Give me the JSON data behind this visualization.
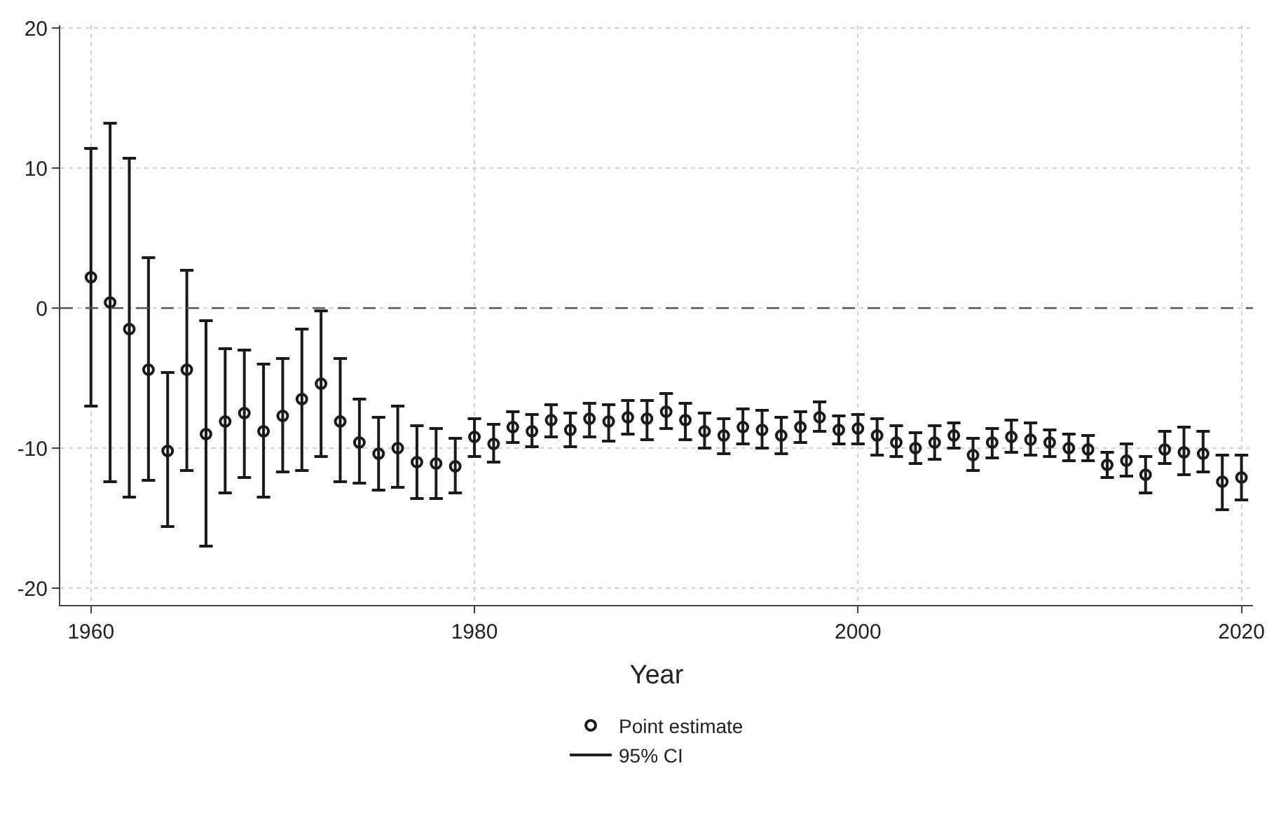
{
  "chart_data": {
    "type": "scatter",
    "xlabel": "Year",
    "x": [
      1960,
      1961,
      1962,
      1963,
      1964,
      1965,
      1966,
      1967,
      1968,
      1969,
      1970,
      1971,
      1972,
      1973,
      1974,
      1975,
      1976,
      1977,
      1978,
      1979,
      1980,
      1981,
      1982,
      1983,
      1984,
      1985,
      1986,
      1987,
      1988,
      1989,
      1990,
      1991,
      1992,
      1993,
      1994,
      1995,
      1996,
      1997,
      1998,
      1999,
      2000,
      2001,
      2002,
      2003,
      2004,
      2005,
      2006,
      2007,
      2008,
      2009,
      2010,
      2011,
      2012,
      2013,
      2014,
      2015,
      2016,
      2017,
      2018,
      2019,
      2020
    ],
    "series": [
      {
        "name": "Point estimate",
        "color": "#1a1a1a",
        "marker": "circle",
        "values": [
          2.2,
          0.4,
          -1.5,
          -4.4,
          -10.2,
          -4.4,
          -9.0,
          -8.1,
          -7.5,
          -8.8,
          -7.7,
          -6.5,
          -5.4,
          -8.1,
          -9.6,
          -10.4,
          -10.0,
          -11.0,
          -11.1,
          -11.3,
          -9.2,
          -9.7,
          -8.5,
          -8.8,
          -8.0,
          -8.7,
          -7.9,
          -8.1,
          -7.8,
          -7.9,
          -7.4,
          -8.0,
          -8.8,
          -9.1,
          -8.5,
          -8.7,
          -9.1,
          -8.5,
          -7.8,
          -8.7,
          -8.6,
          -9.1,
          -9.6,
          -10.0,
          -9.6,
          -9.1,
          -10.5,
          -9.6,
          -9.2,
          -9.4,
          -9.6,
          -10.0,
          -10.1,
          -11.2,
          -10.9,
          -11.9,
          -10.1,
          -10.3,
          -10.4,
          -12.4,
          -12.1
        ],
        "errors": [
          [
            -7.0,
            11.4
          ],
          [
            -12.4,
            13.2
          ],
          [
            -13.5,
            10.7
          ],
          [
            -12.3,
            3.6
          ],
          [
            -15.6,
            -4.6
          ],
          [
            -11.6,
            2.7
          ],
          [
            -17.0,
            -0.9
          ],
          [
            -13.2,
            -2.9
          ],
          [
            -12.1,
            -3.0
          ],
          [
            -13.5,
            -4.0
          ],
          [
            -11.7,
            -3.6
          ],
          [
            -11.6,
            -1.5
          ],
          [
            -10.6,
            -0.2
          ],
          [
            -12.4,
            -3.6
          ],
          [
            -12.5,
            -6.5
          ],
          [
            -13.0,
            -7.8
          ],
          [
            -12.8,
            -7.0
          ],
          [
            -13.6,
            -8.4
          ],
          [
            -13.6,
            -8.6
          ],
          [
            -13.2,
            -9.3
          ],
          [
            -10.6,
            -7.9
          ],
          [
            -11.0,
            -8.3
          ],
          [
            -9.6,
            -7.4
          ],
          [
            -9.9,
            -7.6
          ],
          [
            -9.2,
            -6.9
          ],
          [
            -9.9,
            -7.5
          ],
          [
            -9.2,
            -6.8
          ],
          [
            -9.5,
            -6.9
          ],
          [
            -9.0,
            -6.6
          ],
          [
            -9.4,
            -6.6
          ],
          [
            -8.6,
            -6.1
          ],
          [
            -9.4,
            -6.8
          ],
          [
            -10.0,
            -7.5
          ],
          [
            -10.4,
            -7.9
          ],
          [
            -9.7,
            -7.2
          ],
          [
            -10.0,
            -7.3
          ],
          [
            -10.4,
            -7.8
          ],
          [
            -9.6,
            -7.4
          ],
          [
            -8.8,
            -6.7
          ],
          [
            -9.7,
            -7.7
          ],
          [
            -9.7,
            -7.6
          ],
          [
            -10.5,
            -7.9
          ],
          [
            -10.6,
            -8.4
          ],
          [
            -11.1,
            -8.9
          ],
          [
            -10.8,
            -8.4
          ],
          [
            -10.0,
            -8.2
          ],
          [
            -11.6,
            -9.3
          ],
          [
            -10.7,
            -8.6
          ],
          [
            -10.3,
            -8.0
          ],
          [
            -10.5,
            -8.2
          ],
          [
            -10.6,
            -8.7
          ],
          [
            -10.9,
            -9.0
          ],
          [
            -10.9,
            -9.1
          ],
          [
            -12.1,
            -10.3
          ],
          [
            -12.0,
            -9.7
          ],
          [
            -13.2,
            -10.6
          ],
          [
            -11.1,
            -8.8
          ],
          [
            -11.9,
            -8.5
          ],
          [
            -11.7,
            -8.8
          ],
          [
            -14.4,
            -10.5
          ],
          [
            -13.7,
            -10.5
          ]
        ]
      }
    ],
    "annotations": [
      "95% CI"
    ],
    "xlim": [
      1958.4,
      2020.6
    ],
    "xticks": [
      1960,
      1980,
      2000,
      2020
    ],
    "ylim": [
      -21.2,
      20.2
    ],
    "yticks": [
      -20,
      -10,
      0,
      10,
      20
    ],
    "ref_lines": [
      {
        "axis": "y",
        "value": 0,
        "line_style": "dashed",
        "color": "#555555"
      }
    ],
    "grid": true,
    "legend": "bottom"
  }
}
